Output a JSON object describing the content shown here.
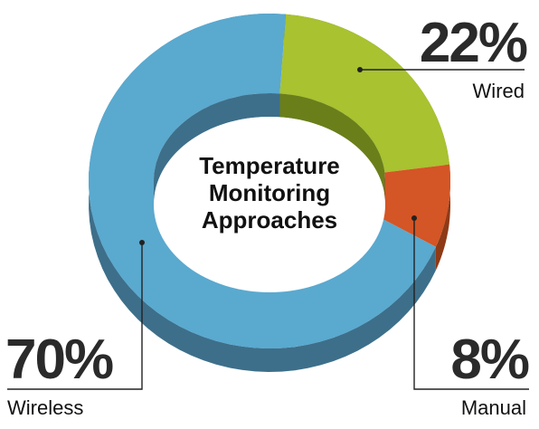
{
  "chart_data": {
    "type": "pie",
    "style": "3d-donut",
    "title": "Temperature Monitoring Approaches",
    "title_lines": [
      "Temperature",
      "Monitoring",
      "Approaches"
    ],
    "categories": [
      "Wired",
      "Manual",
      "Wireless"
    ],
    "values": [
      22,
      8,
      70
    ],
    "value_labels": [
      "22%",
      "8%",
      "70%"
    ],
    "colors": {
      "Wired": "#a8c230",
      "Manual": "#d45525",
      "Wireless": "#5aa9cf"
    },
    "side_colors": {
      "Wired": "#6a7f1a",
      "Manual": "#8e3a17",
      "Wireless": "#3d6f8a"
    }
  }
}
